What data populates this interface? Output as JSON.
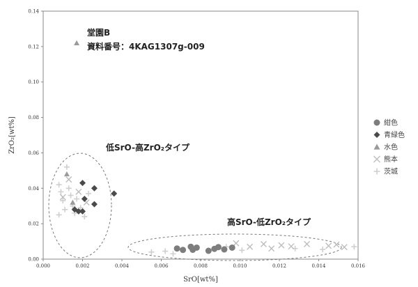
{
  "chart_data": {
    "type": "scatter",
    "xlabel": "SrO[wt%]",
    "ylabel": "ZrO₂[wt%]",
    "xlim": [
      0,
      0.016
    ],
    "ylim": [
      0,
      0.14
    ],
    "x_ticks": [
      "0.000",
      "0.002",
      "0.004",
      "0.006",
      "0.008",
      "0.010",
      "0.012",
      "0.014",
      "0.016"
    ],
    "y_ticks": [
      "0.00",
      "0.02",
      "0.04",
      "0.06",
      "0.08",
      "0.10",
      "0.12",
      "0.14"
    ],
    "grid": false,
    "legend_position": "right",
    "annotations": {
      "sample": {
        "line1": "堂園B",
        "line2": "資料番号：4KAG1307g-009"
      },
      "group_low": "低SrO-高ZrO₂タイプ",
      "group_high": "高SrO-低ZrO₂タイプ"
    },
    "series": [
      {
        "name": "紺色",
        "marker": "circle",
        "color": "#7d7d7d",
        "points": [
          [
            0.0068,
            0.006
          ],
          [
            0.0071,
            0.0052
          ],
          [
            0.0075,
            0.007
          ],
          [
            0.0076,
            0.0053
          ],
          [
            0.0078,
            0.0065
          ],
          [
            0.0084,
            0.0047
          ],
          [
            0.0087,
            0.0058
          ],
          [
            0.0089,
            0.0068
          ],
          [
            0.0092,
            0.0055
          ],
          [
            0.0096,
            0.0065
          ]
        ]
      },
      {
        "name": "青緑色",
        "marker": "diamond",
        "color": "#4a4a4a",
        "points": [
          [
            0.002,
            0.043
          ],
          [
            0.0026,
            0.04
          ],
          [
            0.0036,
            0.037
          ],
          [
            0.0021,
            0.034
          ],
          [
            0.0026,
            0.031
          ],
          [
            0.0016,
            0.028
          ],
          [
            0.0018,
            0.027
          ],
          [
            0.002,
            0.027
          ]
        ]
      },
      {
        "name": "水色",
        "marker": "triangle",
        "color": "#9a9a9a",
        "points": [
          [
            0.0017,
            0.122
          ],
          [
            0.0012,
            0.048
          ],
          [
            0.0015,
            0.032
          ]
        ]
      },
      {
        "name": "熊本",
        "marker": "x",
        "color": "#bdbdbd",
        "points": [
          [
            0.0098,
            0.009
          ],
          [
            0.0105,
            0.007
          ],
          [
            0.0112,
            0.0085
          ],
          [
            0.0116,
            0.006
          ],
          [
            0.0121,
            0.0078
          ],
          [
            0.0126,
            0.0072
          ],
          [
            0.0134,
            0.0085
          ],
          [
            0.0145,
            0.0075
          ],
          [
            0.0149,
            0.0082
          ],
          [
            0.0153,
            0.0068
          ],
          [
            0.0013,
            0.045
          ],
          [
            0.0018,
            0.038
          ],
          [
            0.001,
            0.035
          ],
          [
            0.0022,
            0.032
          ]
        ]
      },
      {
        "name": "茨城",
        "marker": "plus",
        "color": "#cfcfcf",
        "points": [
          [
            0.0008,
            0.042
          ],
          [
            0.0009,
            0.038
          ],
          [
            0.001,
            0.033
          ],
          [
            0.0011,
            0.028
          ],
          [
            0.0012,
            0.052
          ],
          [
            0.0013,
            0.04
          ],
          [
            0.0014,
            0.036
          ],
          [
            0.0015,
            0.03
          ],
          [
            0.0016,
            0.026
          ],
          [
            0.0017,
            0.034
          ],
          [
            0.0019,
            0.029
          ],
          [
            0.0021,
            0.024
          ],
          [
            0.0023,
            0.037
          ],
          [
            0.0008,
            0.025
          ],
          [
            0.0055,
            0.004
          ],
          [
            0.0062,
            0.0045
          ],
          [
            0.0066,
            0.003
          ],
          [
            0.0093,
            0.007
          ],
          [
            0.0101,
            0.005
          ],
          [
            0.0128,
            0.006
          ],
          [
            0.0142,
            0.0055
          ],
          [
            0.0158,
            0.007
          ]
        ]
      }
    ]
  }
}
